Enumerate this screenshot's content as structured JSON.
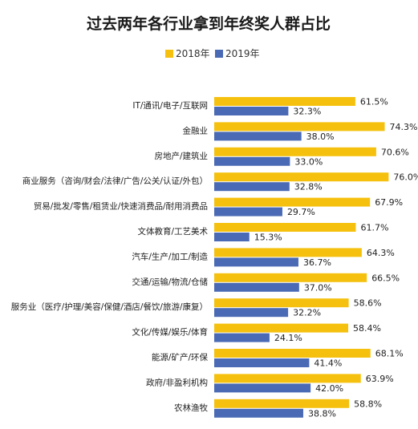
{
  "chart_data": {
    "type": "bar",
    "orientation": "horizontal",
    "title": "过去两年各行业拿到年终奖人群占比",
    "xlabel": "",
    "ylabel": "",
    "xlim": [
      0,
      100
    ],
    "grid": false,
    "legend_position": "top",
    "value_suffix": "%",
    "categories": [
      "IT/通讯/电子/互联网",
      "金融业",
      "房地产/建筑业",
      "商业服务（咨询/财会/法律/广告/公关/认证/外包）",
      "贸易/批发/零售/租赁业/快速消费品/耐用消费品",
      "文体教育/工艺美术",
      "汽车/生产/加工/制造",
      "交通/运输/物流/仓储",
      "服务业（医疗/护理/美容/保健/酒店/餐饮/旅游/康复）",
      "文化/传媒/娱乐/体育",
      "能源/矿产/环保",
      "政府/非盈利机构",
      "农林渔牧"
    ],
    "series": [
      {
        "name": "2018年",
        "color": "#F5C10E",
        "values": [
          61.5,
          74.3,
          70.6,
          76.0,
          67.9,
          61.7,
          64.3,
          66.5,
          58.6,
          58.4,
          68.1,
          63.9,
          58.8
        ],
        "labels": [
          "61.5%",
          "74.3%",
          "70.6%",
          "76.0%",
          "67.9%",
          "61.7%",
          "64.3%",
          "66.5%",
          "58.6%",
          "58.4%",
          "68.1%",
          "63.9%",
          "58.8%"
        ]
      },
      {
        "name": "2019年",
        "color": "#4A6AB5",
        "values": [
          32.3,
          38.0,
          33.0,
          32.8,
          29.7,
          15.3,
          36.7,
          37.0,
          32.2,
          24.1,
          41.4,
          42.0,
          38.8
        ],
        "labels": [
          "32.3%",
          "38.0%",
          "33.0%",
          "32.8%",
          "29.7%",
          "15.3%",
          "36.7%",
          "37.0%",
          "32.2%",
          "24.1%",
          "41.4%",
          "42.0%",
          "38.8%"
        ]
      }
    ]
  }
}
